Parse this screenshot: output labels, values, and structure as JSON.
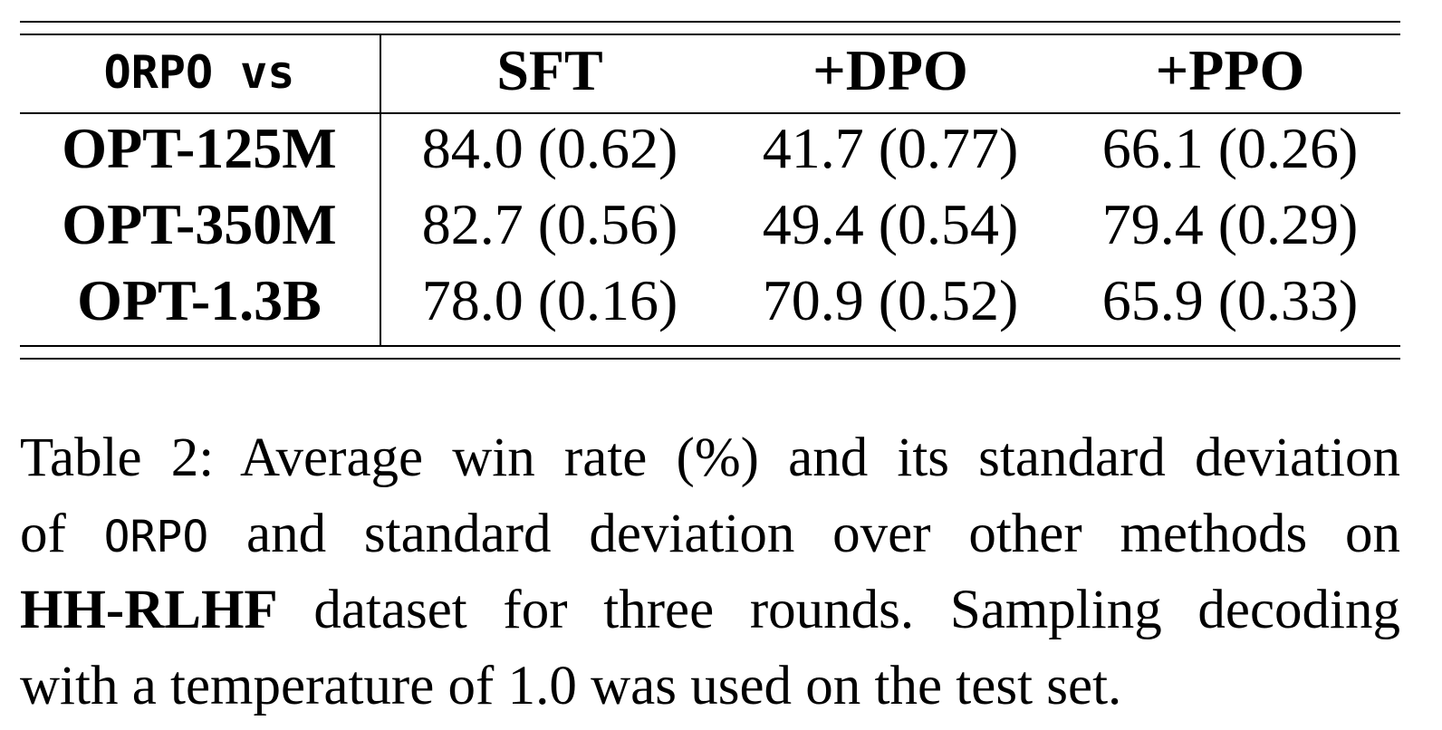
{
  "table": {
    "header": [
      "ORPO vs",
      "SFT",
      "+DPO",
      "+PPO"
    ],
    "rows": [
      [
        "OPT-125M",
        "84.0 (0.62)",
        "41.7 (0.77)",
        "66.1 (0.26)"
      ],
      [
        "OPT-350M",
        "82.7 (0.56)",
        "49.4 (0.54)",
        "79.4 (0.29)"
      ],
      [
        "OPT-1.3B",
        "78.0 (0.16)",
        "70.9 (0.52)",
        "65.9 (0.33)"
      ]
    ]
  },
  "caption": {
    "lines": [
      [
        "Table 2: Average win rate (%) and its standard deviation"
      ],
      [
        "of ",
        "ORPO",
        " and standard deviation over other methods on"
      ],
      [
        "HH-RLHF",
        " dataset for three rounds. Sampling decoding"
      ],
      [
        "with a temperature of 1.0 was used on the test set."
      ]
    ]
  }
}
